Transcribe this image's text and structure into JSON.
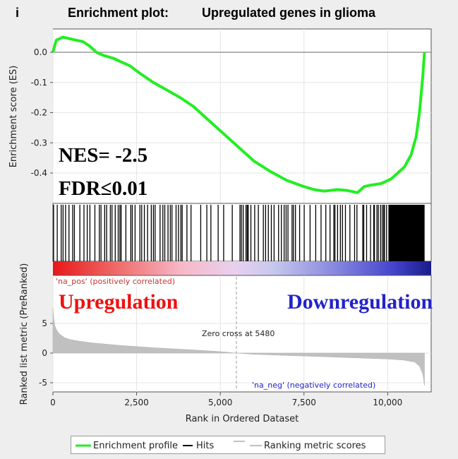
{
  "panel_letter": "i",
  "title_bold": "Enrichment plot:",
  "title_rest": "Upregulated genes in glioma",
  "es_ylabel": "Enrichment score (ES)",
  "metric_ylabel": "Ranked list metric (PreRanked)",
  "xlabel": "Rank in Ordered Dataset",
  "nes_text": "NES= -2.5",
  "fdr_text": "FDR≤0.01",
  "pos_label": "'na_pos' (positively correlated)",
  "neg_label": "'na_neg' (negatively correlated)",
  "up_text": "Upregulation",
  "down_text": "Downregulation",
  "zero_cross_text": "Zero cross at 5480",
  "legend": {
    "enrichment": "Enrichment profile",
    "hits": "Hits",
    "ranking": "Ranking metric scores"
  },
  "colors": {
    "profile": "#22ee22",
    "up_text": "#ee1111",
    "down_text": "#2222cc",
    "pos_label": "#cc3333",
    "neg_label": "#2222cc",
    "metric_fill": "#c0c0c0"
  },
  "chart_data": {
    "type": "line",
    "xlim": [
      0,
      11300
    ],
    "x_ticks": [
      0,
      2500,
      5000,
      7500,
      10000
    ],
    "x_tick_labels": [
      "0",
      "2,500",
      "5,000",
      "7,500",
      "10,000"
    ],
    "es_panel": {
      "ylim": [
        -0.5,
        0.08
      ],
      "y_ticks": [
        0.0,
        -0.1,
        -0.2,
        -0.3,
        -0.4
      ],
      "y_tick_labels": [
        "0.0",
        "-0.1",
        "-0.2",
        "-0.3",
        "-0.4"
      ],
      "series": [
        {
          "name": "Enrichment profile",
          "x": [
            0,
            100,
            300,
            500,
            700,
            900,
            1100,
            1300,
            1500,
            1800,
            2000,
            2300,
            2600,
            3000,
            3400,
            3800,
            4200,
            4600,
            5000,
            5500,
            6000,
            6500,
            7000,
            7500,
            7800,
            8100,
            8500,
            8800,
            9100,
            9300,
            9500,
            9800,
            10100,
            10300,
            10500,
            10700,
            10850,
            10950,
            11050,
            11100
          ],
          "y": [
            0.0,
            0.04,
            0.05,
            0.045,
            0.04,
            0.035,
            0.02,
            0.0,
            -0.01,
            -0.02,
            -0.03,
            -0.045,
            -0.07,
            -0.1,
            -0.125,
            -0.15,
            -0.18,
            -0.22,
            -0.26,
            -0.31,
            -0.36,
            -0.395,
            -0.425,
            -0.445,
            -0.455,
            -0.46,
            -0.455,
            -0.458,
            -0.465,
            -0.445,
            -0.44,
            -0.435,
            -0.42,
            -0.4,
            -0.38,
            -0.34,
            -0.28,
            -0.2,
            -0.08,
            0.0
          ]
        }
      ]
    },
    "metric_panel": {
      "ylim": [
        -6,
        8
      ],
      "y_ticks": [
        5,
        0,
        -5
      ],
      "y_tick_labels": [
        "5",
        "0",
        "-5"
      ],
      "zero_cross": 5480,
      "series": [
        {
          "name": "Ranking metric scores",
          "x": [
            0,
            20,
            60,
            120,
            200,
            350,
            500,
            800,
            1200,
            2000,
            3000,
            4000,
            5000,
            5480,
            6000,
            7000,
            8000,
            9000,
            10000,
            10500,
            10800,
            10950,
            11050,
            11100
          ],
          "y": [
            7.6,
            6.0,
            4.6,
            3.8,
            3.2,
            2.6,
            2.3,
            2.0,
            1.7,
            1.3,
            0.9,
            0.6,
            0.25,
            0.0,
            -0.2,
            -0.4,
            -0.6,
            -0.8,
            -1.0,
            -1.2,
            -1.5,
            -2.2,
            -3.5,
            -5.5
          ]
        }
      ]
    },
    "hits_panel": {
      "hit_density_note": "sparse hits in early ranks, dense block beyond rank ~10,000"
    }
  }
}
